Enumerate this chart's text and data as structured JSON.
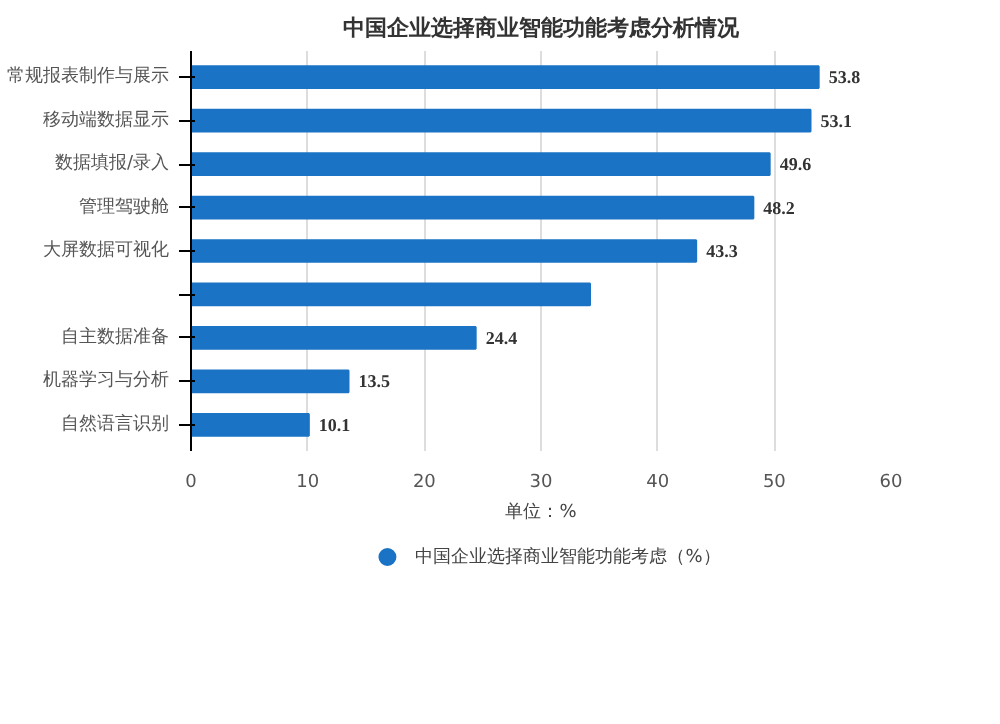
{
  "chart_data": {
    "type": "bar",
    "orientation": "horizontal",
    "title": "中国企业选择商业智能功能考虑分析情况",
    "xlabel": "单位：%",
    "categories": [
      "常规报表制作与展示",
      "移动端数据显示",
      "数据填报/录入",
      "管理驾驶舱",
      "大屏数据可视化",
      null,
      "自主数据准备",
      "机器学习与分析",
      "自然语言识别"
    ],
    "series": [
      {
        "name": "中国企业选择商业智能功能考虑（%）",
        "color": "#1a73c5",
        "values": [
          53.8,
          53.1,
          49.6,
          48.2,
          43.3,
          34.2,
          24.4,
          13.5,
          10.1
        ],
        "value_labels": [
          "53.8",
          "53.1",
          "49.6",
          "48.2",
          "43.3",
          null,
          "24.4",
          "13.5",
          "10.1"
        ]
      }
    ],
    "xlim": [
      0,
      60
    ],
    "xticks": [
      0,
      10,
      20,
      30,
      40,
      50,
      60
    ],
    "grid": "x",
    "legend": "bottom"
  }
}
